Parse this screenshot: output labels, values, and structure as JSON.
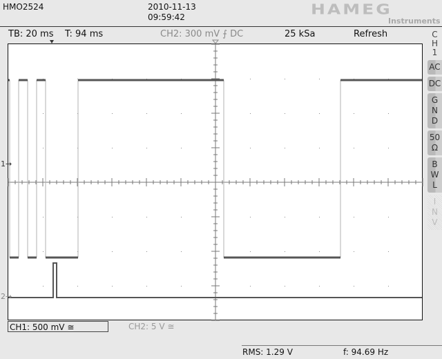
{
  "header": {
    "model": "HMO2524",
    "date": "2010-11-13",
    "time": "09:59:42",
    "logo": "HAMEG",
    "logo_sub": "Instruments"
  },
  "status": {
    "timebase": "TB: 20 ms",
    "trigger_time": "T: 94 ms",
    "ch2_trigger": "CH2: 300 mV ⨍ DC",
    "sample_rate": "25 kSa",
    "acq_mode": "Refresh"
  },
  "side_menu": {
    "channel": [
      "C",
      "H",
      "1"
    ],
    "buttons": [
      {
        "label": [
          "AC"
        ],
        "enabled": true
      },
      {
        "label": [
          "DC"
        ],
        "enabled": true
      },
      {
        "label": [
          "G",
          "N",
          "D"
        ],
        "enabled": true
      },
      {
        "label": [
          "50",
          "Ω"
        ],
        "enabled": true
      },
      {
        "label": [
          "B",
          "W",
          "L"
        ],
        "enabled": true
      },
      {
        "label": [
          "I",
          "N",
          "V"
        ],
        "enabled": false
      }
    ]
  },
  "markers": {
    "ch1": "1",
    "ch2": "2"
  },
  "channels": {
    "ch1_scale": "CH1: 500 mV ≅",
    "ch2_scale": "CH2: 5 V ≅"
  },
  "measurements": {
    "rms": "RMS: 1.29 V",
    "frequency": "f: 94.69 Hz"
  },
  "colors": {
    "trace": "#555555",
    "grid": "#777777",
    "edge": "#b0b0b0"
  }
}
